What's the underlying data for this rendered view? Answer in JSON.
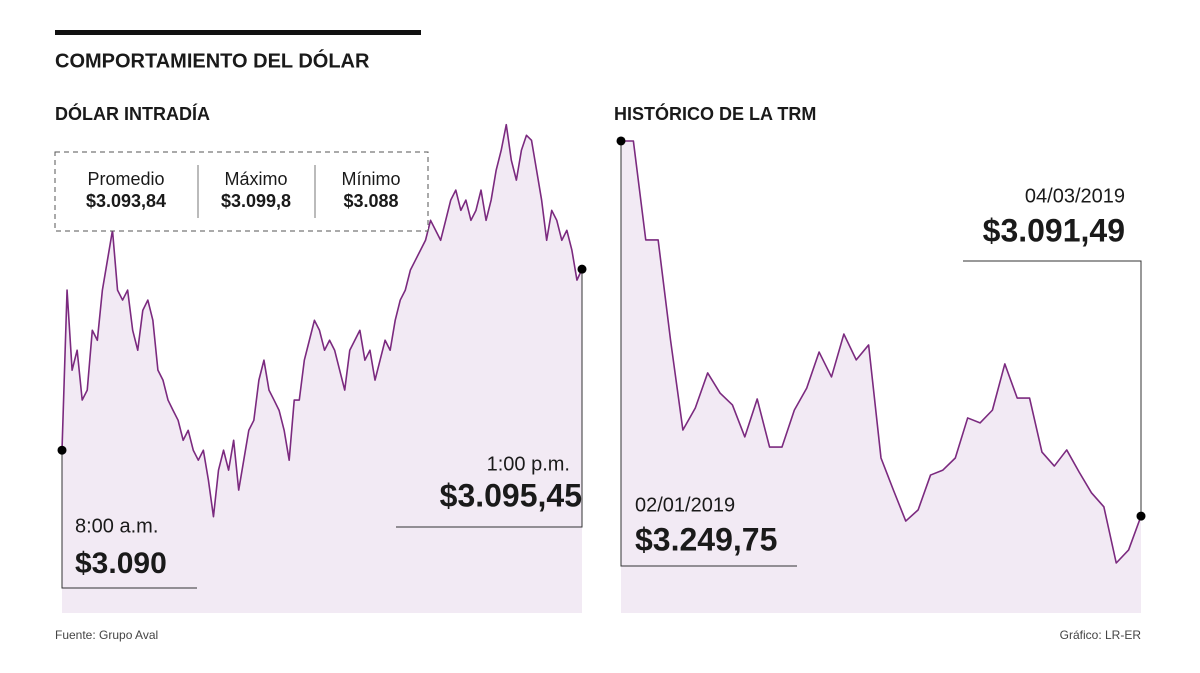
{
  "title": "COMPORTAMIENTO DEL DÓLAR",
  "source": "Fuente: Grupo Aval",
  "credit": "Gráfico: LR-ER",
  "chart_data": [
    {
      "type": "line",
      "title": "DÓLAR INTRADÍA",
      "color": "#7b2a7f",
      "fill_color": "#f2eaf4",
      "stats": [
        {
          "label": "Promedio",
          "value": "$3.093,84"
        },
        {
          "label": "Máximo",
          "value": "$3.099,8"
        },
        {
          "label": "Mínimo",
          "value": "$3.088"
        }
      ],
      "categories": [
        "8:00 a.m.",
        null,
        null,
        null,
        null,
        null,
        null,
        null,
        null,
        null,
        null,
        null,
        null,
        null,
        null,
        null,
        null,
        null,
        null,
        null,
        null,
        null,
        null,
        null,
        null,
        null,
        null,
        null,
        null,
        null,
        null,
        null,
        null,
        null,
        null,
        null,
        null,
        null,
        null,
        null,
        null,
        null,
        null,
        null,
        null,
        null,
        null,
        null,
        null,
        null,
        null,
        null,
        null,
        null,
        null,
        null,
        null,
        null,
        null,
        null,
        null,
        null,
        null,
        null,
        null,
        null,
        null,
        null,
        null,
        null,
        null,
        null,
        null,
        null,
        null,
        null,
        null,
        null,
        null,
        null,
        null,
        null,
        null,
        null,
        null,
        null,
        null,
        null,
        null,
        null,
        null,
        null,
        null,
        null,
        null,
        null,
        null,
        null,
        null,
        null,
        null,
        null,
        null,
        "1:00 p.m."
      ],
      "values": [
        3090.0,
        3094.82,
        3092.41,
        3093.01,
        3091.51,
        3091.81,
        3093.61,
        3093.31,
        3094.82,
        3095.72,
        3096.62,
        3094.82,
        3094.52,
        3094.82,
        3093.61,
        3093.01,
        3094.21,
        3094.52,
        3093.91,
        3092.41,
        3092.11,
        3091.51,
        3091.2,
        3090.9,
        3090.3,
        3090.6,
        3090.0,
        3089.7,
        3090.0,
        3089.1,
        3088.0,
        3089.4,
        3090.0,
        3089.4,
        3090.3,
        3088.8,
        3089.7,
        3090.6,
        3090.9,
        3092.11,
        3092.71,
        3091.81,
        3091.51,
        3091.2,
        3090.6,
        3089.7,
        3091.51,
        3091.51,
        3092.71,
        3093.31,
        3093.91,
        3093.61,
        3093.01,
        3093.31,
        3093.01,
        3092.41,
        3091.81,
        3093.01,
        3093.31,
        3093.61,
        3092.71,
        3093.01,
        3092.11,
        3092.71,
        3093.31,
        3093.01,
        3093.91,
        3094.52,
        3094.82,
        3095.42,
        3095.72,
        3096.02,
        3096.32,
        3096.92,
        3096.62,
        3096.32,
        3096.92,
        3097.53,
        3097.83,
        3097.22,
        3097.53,
        3096.92,
        3097.22,
        3097.83,
        3096.92,
        3097.53,
        3098.43,
        3099.03,
        3099.8,
        3098.73,
        3098.13,
        3099.03,
        3099.48,
        3099.33,
        3098.43,
        3097.53,
        3096.32,
        3097.22,
        3096.92,
        3096.32,
        3096.62,
        3096.02,
        3095.12,
        3095.45
      ],
      "value_labels": [
        "$3.090",
        null,
        null,
        null,
        null,
        null,
        null,
        null,
        null,
        null,
        null,
        null,
        null,
        null,
        null,
        null,
        null,
        null,
        null,
        null,
        null,
        null,
        null,
        null,
        null,
        null,
        null,
        null,
        null,
        null,
        null,
        null,
        null,
        null,
        null,
        null,
        null,
        null,
        null,
        null,
        null,
        null,
        null,
        null,
        null,
        null,
        null,
        null,
        null,
        null,
        null,
        null,
        null,
        null,
        null,
        null,
        null,
        null,
        null,
        null,
        null,
        null,
        null,
        null,
        null,
        null,
        null,
        null,
        null,
        null,
        null,
        null,
        null,
        null,
        null,
        null,
        null,
        null,
        null,
        null,
        null,
        null,
        null,
        null,
        null,
        null,
        null,
        null,
        null,
        null,
        null,
        null,
        null,
        null,
        null,
        null,
        null,
        null,
        null,
        null,
        null,
        null,
        null,
        "$3.095,45"
      ],
      "ylim": [
        3085.1,
        3100
      ]
    },
    {
      "type": "line",
      "title": "HISTÓRICO DE LA TRM",
      "color": "#7b2a7f",
      "fill_color": "#f2eaf4",
      "categories": [
        "02/01/2019",
        null,
        null,
        null,
        null,
        null,
        null,
        null,
        null,
        null,
        null,
        null,
        null,
        null,
        null,
        null,
        null,
        null,
        null,
        null,
        null,
        null,
        null,
        null,
        null,
        null,
        null,
        null,
        null,
        null,
        null,
        null,
        null,
        null,
        null,
        null,
        null,
        null,
        null,
        null,
        null,
        null,
        "04/03/2019"
      ],
      "values": [
        3249.75,
        3249.75,
        3208.0,
        3208.0,
        3165.8,
        3127.8,
        3137.1,
        3151.9,
        3143.4,
        3138.4,
        3124.9,
        3140.9,
        3120.6,
        3120.6,
        3136.2,
        3145.5,
        3160.7,
        3150.2,
        3168.3,
        3157.4,
        3163.7,
        3116.0,
        3102.5,
        3089.4,
        3094.1,
        3108.8,
        3110.9,
        3116.0,
        3132.9,
        3130.8,
        3136.2,
        3155.7,
        3141.3,
        3141.3,
        3118.5,
        3112.6,
        3119.4,
        3110.1,
        3101.3,
        3095.4,
        3071.7,
        3077.2,
        3091.49
      ],
      "value_labels": [
        "$3.249,75",
        null,
        null,
        null,
        null,
        null,
        null,
        null,
        null,
        null,
        null,
        null,
        null,
        null,
        null,
        null,
        null,
        null,
        null,
        null,
        null,
        null,
        null,
        null,
        null,
        null,
        null,
        null,
        null,
        null,
        null,
        null,
        null,
        null,
        null,
        null,
        null,
        null,
        null,
        null,
        null,
        null,
        "$3.091,49"
      ],
      "ylim": [
        3050.6,
        3250
      ]
    }
  ]
}
